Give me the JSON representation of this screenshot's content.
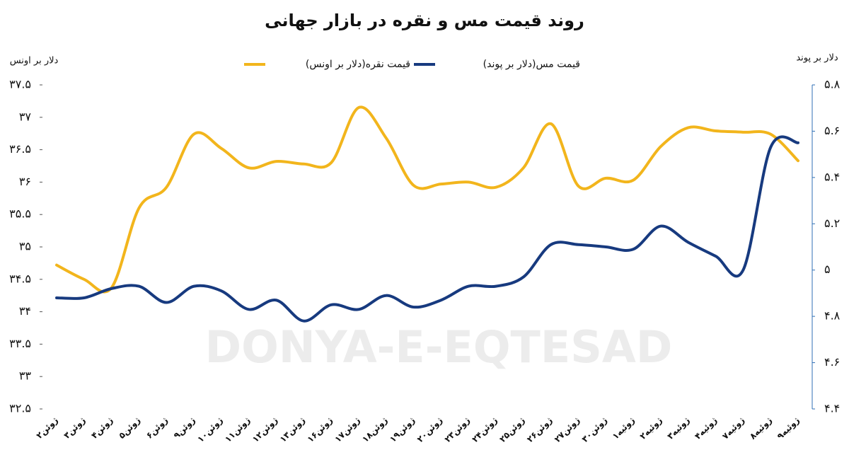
{
  "chart_data": {
    "type": "line",
    "title": "روند قیمت مس و نقره در بازار جهانی",
    "y_label": "دلار بر اونس",
    "y2_label": "دلار بر پوند",
    "watermark": "DONYA-E-EQTESAD",
    "categories": [
      "۲ژوئن",
      "۳ژوئن",
      "۴ژوئن",
      "۵ژوئن",
      "۶ژوئن",
      "۹ژوئن",
      "۱۰ژوئن",
      "۱۱ژوئن",
      "۱۲ژوئن",
      "۱۳ژوئن",
      "۱۶ژوئن",
      "۱۷ژوئن",
      "۱۸ژوئن",
      "۱۹ژوئن",
      "۲۰ژوئن",
      "۲۳ژوئن",
      "۲۴ژوئن",
      "۲۵ژوئن",
      "۲۶ژوئن",
      "۲۷ژوئن",
      "۳۰ژوئن",
      "۱ژوئیه",
      "۲ژوئیه",
      "۳ژوئیه",
      "۴ژوئیه",
      "۷ژوئیه",
      "۸ژوئیه",
      "۹ژوئیه"
    ],
    "series": [
      {
        "name": "قیمت نقره(دلار بر اونس)",
        "color": "#f2b51c",
        "values": [
          34.72,
          34.5,
          34.37,
          35.6,
          35.92,
          36.74,
          36.52,
          36.22,
          36.32,
          36.28,
          36.3,
          37.15,
          36.68,
          35.95,
          35.97,
          36.0,
          35.92,
          36.22,
          36.9,
          35.94,
          36.06,
          36.03,
          36.55,
          36.84,
          36.79,
          36.77,
          36.74,
          36.33
        ]
      },
      {
        "name": "قیمت مس(دلار بر پوند)",
        "color": "#173a7f",
        "axis": "y2",
        "values": [
          4.88,
          4.88,
          4.92,
          4.93,
          4.86,
          4.93,
          4.91,
          4.83,
          4.87,
          4.78,
          4.85,
          4.83,
          4.89,
          4.84,
          4.87,
          4.93,
          4.93,
          4.97,
          5.11,
          5.11,
          5.1,
          5.09,
          5.19,
          5.12,
          5.06,
          5.0,
          5.53,
          5.55
        ]
      }
    ],
    "ylim": [
      32.5,
      37.5
    ],
    "yticks": [
      {
        "value": 32.5,
        "label": "۳۲.۵"
      },
      {
        "value": 33,
        "label": "۳۳"
      },
      {
        "value": 33.5,
        "label": "۳۳.۵"
      },
      {
        "value": 34,
        "label": "۳۴"
      },
      {
        "value": 34.5,
        "label": "۳۴.۵"
      },
      {
        "value": 35,
        "label": "۳۵"
      },
      {
        "value": 35.5,
        "label": "۳۵.۵"
      },
      {
        "value": 36,
        "label": "۳۶"
      },
      {
        "value": 36.5,
        "label": "۳۶.۵"
      },
      {
        "value": 37,
        "label": "۳۷"
      },
      {
        "value": 37.5,
        "label": "۳۷.۵"
      }
    ],
    "y2lim": [
      4.4,
      5.8
    ],
    "y2ticks": [
      {
        "value": 4.4,
        "label": "۴.۴"
      },
      {
        "value": 4.6,
        "label": "۴.۶"
      },
      {
        "value": 4.8,
        "label": "۴.۸"
      },
      {
        "value": 5,
        "label": "۵"
      },
      {
        "value": 5.2,
        "label": "۵.۲"
      },
      {
        "value": 5.4,
        "label": "۵.۴"
      },
      {
        "value": 5.6,
        "label": "۵.۶"
      },
      {
        "value": 5.8,
        "label": "۵.۸"
      }
    ]
  }
}
